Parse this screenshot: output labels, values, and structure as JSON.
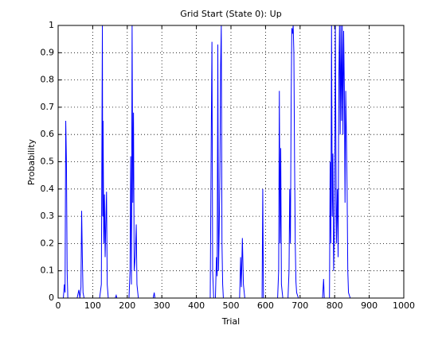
{
  "chart_data": {
    "type": "line",
    "title": "Grid Start (State 0): Up",
    "xlabel": "Trial",
    "ylabel": "Probability",
    "x": [
      0,
      15,
      18,
      20,
      22,
      24,
      26,
      28,
      55,
      60,
      63,
      66,
      68,
      70,
      72,
      75,
      120,
      125,
      128,
      129,
      130,
      132,
      134,
      136,
      138,
      140,
      142,
      145,
      165,
      168,
      170,
      205,
      208,
      210,
      212,
      214,
      216,
      218,
      220,
      223,
      226,
      228,
      232,
      275,
      278,
      280,
      440,
      443,
      445,
      447,
      450,
      455,
      458,
      460,
      462,
      464,
      466,
      468,
      470,
      472,
      474,
      476,
      478,
      525,
      528,
      530,
      533,
      536,
      540,
      590,
      592,
      594,
      635,
      638,
      640,
      642,
      644,
      646,
      650,
      665,
      668,
      670,
      672,
      674,
      676,
      678,
      680,
      682,
      684,
      686,
      688,
      690,
      695,
      765,
      768,
      770,
      785,
      787,
      789,
      791,
      793,
      795,
      797,
      800,
      802,
      805,
      808,
      810,
      812,
      814,
      816,
      818,
      820,
      822,
      824,
      826,
      828,
      830,
      832,
      834,
      836,
      838,
      840,
      845,
      1000
    ],
    "series": [
      {
        "name": "Up",
        "color": "#0000ff",
        "values": [
          0,
          0,
          0.05,
          0.02,
          0.65,
          0.5,
          0.1,
          0,
          0,
          0.03,
          0,
          0.04,
          0.32,
          0.15,
          0.02,
          0,
          0,
          0.05,
          1,
          0.3,
          0.65,
          0.2,
          0.38,
          0.15,
          0.28,
          0.39,
          0.05,
          0,
          0,
          0.01,
          0,
          0,
          0.1,
          0.52,
          0.05,
          1,
          0.35,
          0.68,
          0.1,
          0.15,
          0.27,
          0.05,
          0,
          0,
          0.02,
          0,
          0,
          0.6,
          0.94,
          0.1,
          0,
          0,
          0.15,
          0.08,
          0.93,
          0.1,
          0.25,
          0.45,
          0.85,
          1,
          0.2,
          0.05,
          0,
          0,
          0.15,
          0.04,
          0.22,
          0.05,
          0,
          0,
          0.4,
          0,
          0,
          0.1,
          0.76,
          0.2,
          0.55,
          0.05,
          0,
          0,
          0.1,
          0.4,
          0.2,
          0.7,
          0.99,
          0.97,
          1,
          0.9,
          0.5,
          0.2,
          0.06,
          0.02,
          0,
          0,
          0.07,
          0,
          0,
          0.5,
          0.2,
          1,
          0.3,
          0.53,
          0.1,
          0.3,
          1,
          0.2,
          0.4,
          0.15,
          0.8,
          1,
          0.6,
          1,
          0.65,
          1,
          0.6,
          0.98,
          0.77,
          0.35,
          0.76,
          0.6,
          0.4,
          0.1,
          0.02,
          0,
          0
        ]
      }
    ],
    "xlim": [
      0,
      1000
    ],
    "xticks": [
      0,
      100,
      200,
      300,
      400,
      500,
      600,
      700,
      800,
      900,
      1000
    ],
    "ylim": [
      0,
      1
    ],
    "yticks": [
      0,
      0.1,
      0.2,
      0.3,
      0.4,
      0.5,
      0.6,
      0.7,
      0.8,
      0.9,
      1
    ],
    "grid": true
  }
}
